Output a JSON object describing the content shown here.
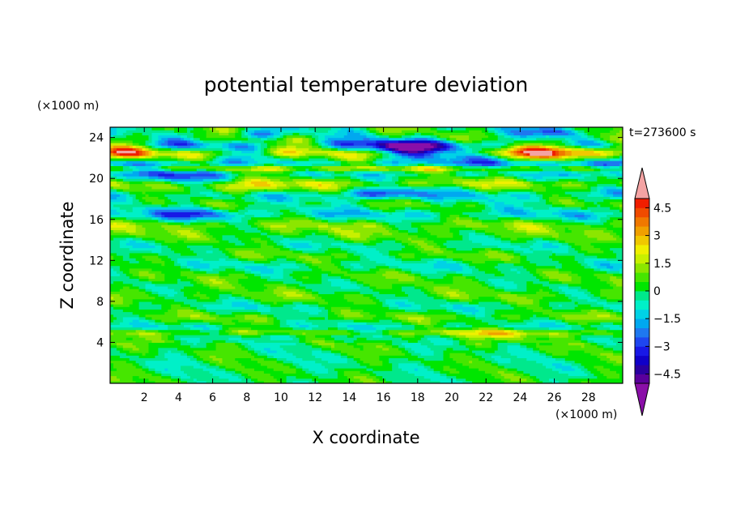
{
  "chart_data": {
    "type": "heatmap",
    "title": "potential temperature deviation",
    "xlabel": "X coordinate",
    "ylabel": "Z coordinate",
    "x_unit": "(×1000 m)",
    "y_unit": "(×1000 m)",
    "time_label": "t=273600 s",
    "xlim": [
      0,
      30
    ],
    "ylim": [
      0,
      25
    ],
    "x_ticks": [
      "2",
      "4",
      "6",
      "8",
      "10",
      "12",
      "14",
      "16",
      "18",
      "20",
      "22",
      "24",
      "26",
      "28"
    ],
    "y_ticks": [
      "4",
      "8",
      "12",
      "16",
      "20",
      "24"
    ],
    "colorbar": {
      "levels": [
        -5.0,
        -4.5,
        -4.0,
        -3.5,
        -3.0,
        -2.5,
        -2.0,
        -1.5,
        -1.0,
        -0.5,
        0.0,
        0.5,
        1.0,
        1.5,
        2.0,
        2.5,
        3.0,
        3.5,
        4.0,
        4.5,
        5.0
      ],
      "colors": [
        "#5a009c",
        "#2a00a0",
        "#1000c8",
        "#1818e6",
        "#1e46f0",
        "#1e78f0",
        "#00a8f0",
        "#00d2e6",
        "#00f0c8",
        "#00e88c",
        "#00e600",
        "#46e600",
        "#8ce600",
        "#c8f000",
        "#f0f000",
        "#f0c800",
        "#f0a000",
        "#f07800",
        "#f04b00",
        "#f01e00"
      ],
      "under_color": "#8a0fa8",
      "over_color": "#f4a3a3",
      "tick_labels": [
        "4.5",
        "3",
        "1.5",
        "0",
        "−1.5",
        "−3",
        "−4.5"
      ],
      "tick_values": [
        4.5,
        3,
        1.5,
        0,
        -1.5,
        -3,
        -4.5
      ]
    },
    "bands_z": [
      {
        "z": 0.5,
        "mean": 0.1,
        "amp": 0.4
      },
      {
        "z": 1.5,
        "mean": 0.0,
        "amp": 0.4
      },
      {
        "z": 2.5,
        "mean": 0.0,
        "amp": 0.45
      },
      {
        "z": 3.5,
        "mean": 0.1,
        "amp": 0.5
      },
      {
        "z": 4.5,
        "mean": 0.3,
        "amp": 0.6
      },
      {
        "z": 5.0,
        "mean": 1.4,
        "amp": 0.7
      },
      {
        "z": 5.5,
        "mean": -0.6,
        "amp": 0.6
      },
      {
        "z": 6.5,
        "mean": 0.7,
        "amp": 0.6
      },
      {
        "z": 7.5,
        "mean": -0.4,
        "amp": 0.6
      },
      {
        "z": 8.5,
        "mean": 0.6,
        "amp": 0.6
      },
      {
        "z": 9.5,
        "mean": 0.2,
        "amp": 0.6
      },
      {
        "z": 10.5,
        "mean": 0.4,
        "amp": 0.6
      },
      {
        "z": 11.5,
        "mean": -0.5,
        "amp": 0.6
      },
      {
        "z": 12.5,
        "mean": 0.5,
        "amp": 0.6
      },
      {
        "z": 13.5,
        "mean": -0.3,
        "amp": 0.6
      },
      {
        "z": 14.5,
        "mean": 0.6,
        "amp": 0.6
      },
      {
        "z": 15.5,
        "mean": 1.0,
        "amp": 0.6
      },
      {
        "z": 16.5,
        "mean": -1.0,
        "amp": 0.7
      },
      {
        "z": 17.5,
        "mean": 0.2,
        "amp": 0.7
      },
      {
        "z": 18.5,
        "mean": -1.0,
        "amp": 0.8
      },
      {
        "z": 19.5,
        "mean": 1.3,
        "amp": 0.8
      },
      {
        "z": 20.5,
        "mean": -0.7,
        "amp": 0.8
      },
      {
        "z": 21.0,
        "mean": 1.4,
        "amp": 1.0
      },
      {
        "z": 21.5,
        "mean": -1.8,
        "amp": 1.0
      },
      {
        "z": 22.5,
        "mean": 1.6,
        "amp": 1.5
      },
      {
        "z": 23.3,
        "mean": -1.0,
        "amp": 1.6
      },
      {
        "z": 24.0,
        "mean": 0.4,
        "amp": 1.2
      },
      {
        "z": 25.0,
        "mean": 0.0,
        "amp": 1.0
      }
    ],
    "features": [
      {
        "x": 18.0,
        "z": 23.0,
        "rx": 4.0,
        "rz": 1.0,
        "v": -3.8
      },
      {
        "x": 26.5,
        "z": 22.8,
        "rx": 3.5,
        "rz": 0.9,
        "v": 3.0
      },
      {
        "x": 26.0,
        "z": 24.6,
        "rx": 1.5,
        "rz": 0.6,
        "v": -3.0
      },
      {
        "x": 8.5,
        "z": 24.3,
        "rx": 1.8,
        "rz": 0.5,
        "v": -2.5
      },
      {
        "x": 1.0,
        "z": 22.6,
        "rx": 1.5,
        "rz": 0.8,
        "v": 2.0
      },
      {
        "x": 12.0,
        "z": 21.5,
        "rx": 3.0,
        "rz": 0.7,
        "v": 1.8
      },
      {
        "x": 29.0,
        "z": 21.3,
        "rx": 1.5,
        "rz": 0.8,
        "v": -3.0
      },
      {
        "x": 4.5,
        "z": 20.3,
        "rx": 2.5,
        "rz": 0.8,
        "v": -2.5
      },
      {
        "x": 16.0,
        "z": 18.6,
        "rx": 2.0,
        "rz": 0.5,
        "v": -2.5
      },
      {
        "x": 7.5,
        "z": 19.0,
        "rx": 3.0,
        "rz": 0.7,
        "v": 1.8
      },
      {
        "x": 5.0,
        "z": 16.6,
        "rx": 2.0,
        "rz": 0.6,
        "v": -2.2
      },
      {
        "x": 11.0,
        "z": 4.7,
        "rx": 4.0,
        "rz": 0.5,
        "v": -1.2
      },
      {
        "x": 23.0,
        "z": 4.9,
        "rx": 3.0,
        "rz": 0.5,
        "v": 1.0
      }
    ]
  }
}
